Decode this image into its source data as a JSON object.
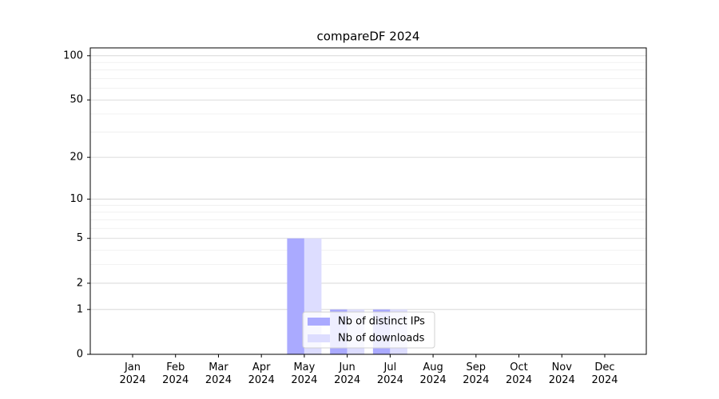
{
  "chart_data": {
    "type": "bar",
    "title": "compareDF 2024",
    "categories": [
      "Jan\n2024",
      "Feb\n2024",
      "Mar\n2024",
      "Apr\n2024",
      "May\n2024",
      "Jun\n2024",
      "Jul\n2024",
      "Aug\n2024",
      "Sep\n2024",
      "Oct\n2024",
      "Nov\n2024",
      "Dec\n2024"
    ],
    "series": [
      {
        "name": "Nb of distinct IPs",
        "color": "#aaaaff",
        "values": [
          0,
          0,
          0,
          0,
          5,
          1,
          1,
          0,
          0,
          0,
          0,
          0
        ]
      },
      {
        "name": "Nb of downloads",
        "color": "#ddddff",
        "values": [
          0,
          0,
          0,
          0,
          5,
          1,
          1,
          0,
          0,
          0,
          0,
          0
        ]
      }
    ],
    "yscale": "log1p",
    "ylim": [
      0,
      113
    ],
    "yticks": [
      0,
      1,
      2,
      5,
      10,
      20,
      50,
      100
    ],
    "minor_yticks": [
      3,
      4,
      6,
      7,
      8,
      9,
      30,
      40,
      60,
      70,
      80,
      90
    ],
    "grid": true,
    "legend": "lower center"
  }
}
